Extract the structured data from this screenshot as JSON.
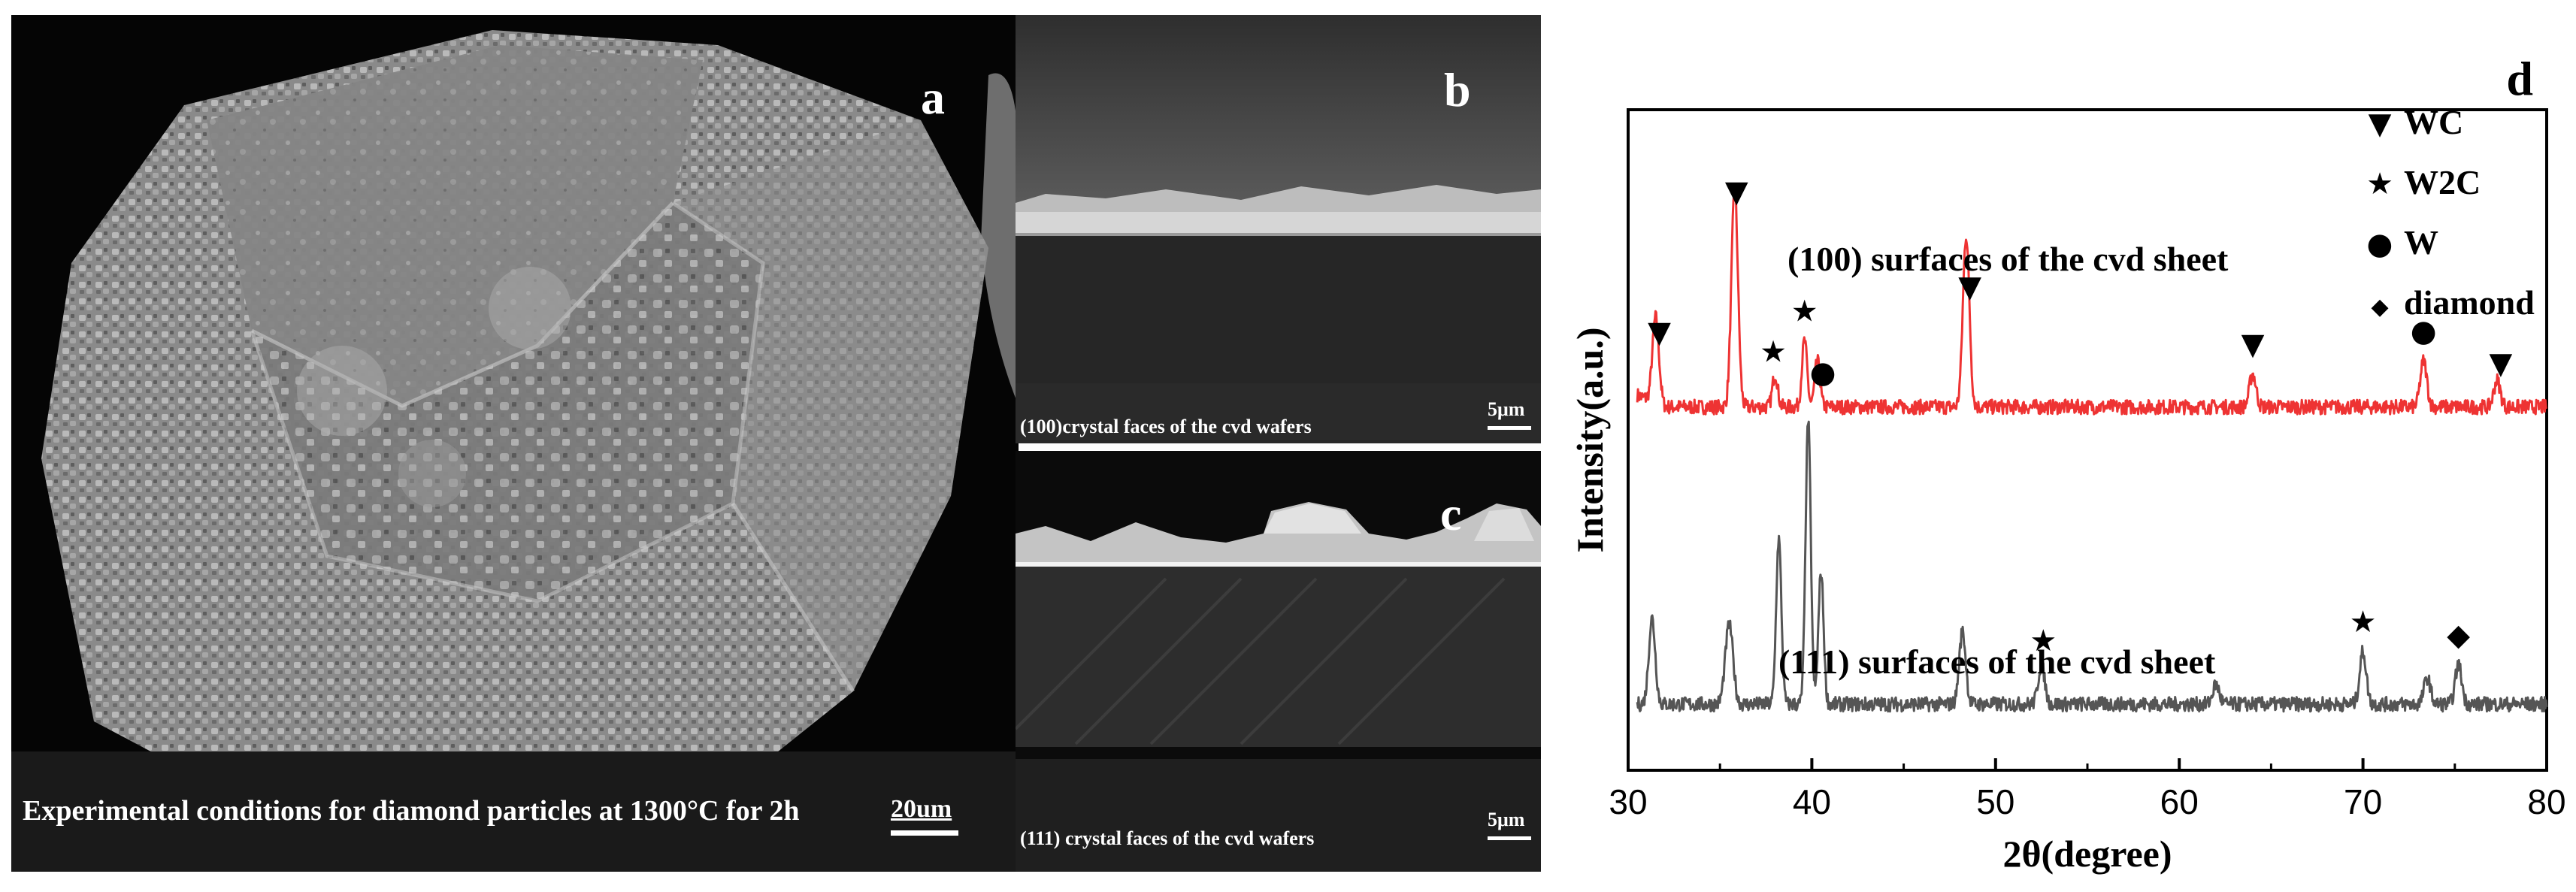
{
  "panel_a": {
    "letter": "a",
    "caption": "Experimental conditions for diamond particles at 1300°C for 2h",
    "scale": "20um"
  },
  "panel_b": {
    "letter": "b",
    "caption": "(100)crystal faces of the cvd wafers",
    "scale": "5μm"
  },
  "panel_c": {
    "letter": "c",
    "caption": "(111) crystal faces of the cvd wafers",
    "scale": "5μm"
  },
  "panel_d": {
    "letter": "d",
    "legend": [
      {
        "symbol": "▼",
        "label": "WC"
      },
      {
        "symbol": "★",
        "label": "W2C"
      },
      {
        "symbol": "●",
        "label": "W"
      },
      {
        "symbol": "◆",
        "label": "diamond"
      }
    ]
  },
  "chart_data": {
    "type": "line",
    "title": "",
    "xlabel": "2θ(degree)",
    "ylabel": "Intensity(a.u.)",
    "xlim": [
      30,
      80
    ],
    "xticks": [
      30,
      40,
      50,
      60,
      70,
      80
    ],
    "yticks": [],
    "colors": {
      "red_series": "#ee3333",
      "gray_series": "#555555"
    },
    "series": [
      {
        "name": "(100) surfaces of the cvd sheet",
        "color": "#ee3333",
        "baseline": 0.55,
        "peaks": [
          {
            "x": 31.5,
            "h": 0.13,
            "w": 0.25
          },
          {
            "x": 35.8,
            "h": 0.33,
            "w": 0.25
          },
          {
            "x": 38.0,
            "h": 0.05,
            "w": 0.2
          },
          {
            "x": 39.6,
            "h": 0.1,
            "w": 0.2
          },
          {
            "x": 40.3,
            "h": 0.07,
            "w": 0.2
          },
          {
            "x": 48.4,
            "h": 0.26,
            "w": 0.25
          },
          {
            "x": 64.0,
            "h": 0.05,
            "w": 0.25
          },
          {
            "x": 73.3,
            "h": 0.07,
            "w": 0.25
          },
          {
            "x": 77.3,
            "h": 0.04,
            "w": 0.25
          }
        ],
        "markers": [
          {
            "x": 31.7,
            "symbol": "▼"
          },
          {
            "x": 35.9,
            "symbol": "▼"
          },
          {
            "x": 37.9,
            "symbol": "★"
          },
          {
            "x": 39.6,
            "symbol": "★"
          },
          {
            "x": 40.6,
            "symbol": "●"
          },
          {
            "x": 48.6,
            "symbol": "▼"
          },
          {
            "x": 64.0,
            "symbol": "▼"
          },
          {
            "x": 73.3,
            "symbol": "●"
          },
          {
            "x": 77.5,
            "symbol": "▼"
          }
        ]
      },
      {
        "name": "(111) surfaces of the cvd sheet",
        "color": "#555555",
        "baseline": 0.1,
        "peaks": [
          {
            "x": 31.3,
            "h": 0.13,
            "w": 0.25
          },
          {
            "x": 35.5,
            "h": 0.12,
            "w": 0.3
          },
          {
            "x": 38.2,
            "h": 0.25,
            "w": 0.2
          },
          {
            "x": 39.8,
            "h": 0.43,
            "w": 0.2
          },
          {
            "x": 40.5,
            "h": 0.2,
            "w": 0.2
          },
          {
            "x": 48.2,
            "h": 0.11,
            "w": 0.25
          },
          {
            "x": 52.5,
            "h": 0.06,
            "w": 0.25
          },
          {
            "x": 62.0,
            "h": 0.03,
            "w": 0.25
          },
          {
            "x": 70.0,
            "h": 0.08,
            "w": 0.25
          },
          {
            "x": 73.5,
            "h": 0.04,
            "w": 0.25
          },
          {
            "x": 75.2,
            "h": 0.06,
            "w": 0.25
          }
        ],
        "markers": [
          {
            "x": 52.6,
            "symbol": "★"
          },
          {
            "x": 70.0,
            "symbol": "★"
          },
          {
            "x": 75.2,
            "symbol": "◆"
          }
        ]
      }
    ]
  }
}
